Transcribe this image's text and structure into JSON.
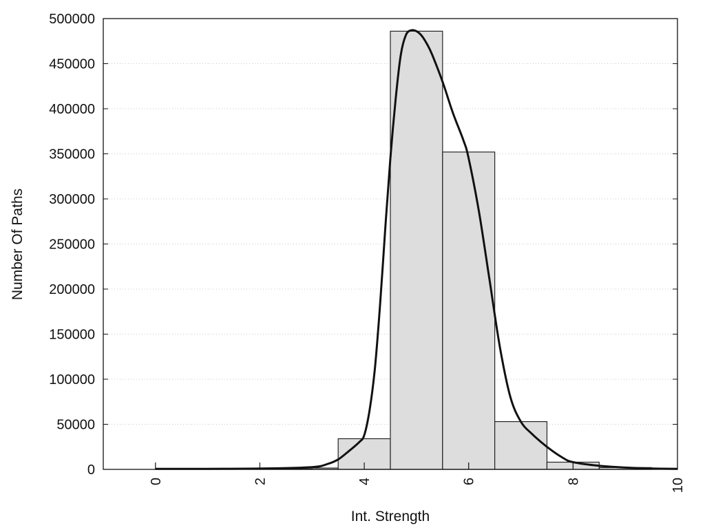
{
  "chart_data": {
    "type": "bar",
    "xlabel": "Int. Strength",
    "ylabel": "Number Of Paths",
    "xlim": [
      -1,
      10
    ],
    "ylim": [
      0,
      500000
    ],
    "x_ticks": [
      0,
      2,
      4,
      6,
      8,
      10
    ],
    "y_ticks": [
      0,
      50000,
      100000,
      150000,
      200000,
      250000,
      300000,
      350000,
      400000,
      450000,
      500000
    ],
    "x_tick_labels": [
      "0",
      "2",
      "4",
      "6",
      "8",
      "10"
    ],
    "y_tick_labels": [
      "0",
      "50000",
      "100000",
      "150000",
      "200000",
      "250000",
      "300000",
      "350000",
      "400000",
      "450000",
      "500000"
    ],
    "grid": {
      "horizontal": true,
      "style": "dotted"
    },
    "legend": null,
    "colors": {
      "bar_fill": "#dddddd",
      "bar_edge": "#222222",
      "curve": "#111111"
    },
    "bins": [
      {
        "from": 0,
        "to": 1,
        "value": 300
      },
      {
        "from": 1,
        "to": 2,
        "value": 400
      },
      {
        "from": 2,
        "to": 3,
        "value": 600
      },
      {
        "from": 3,
        "to": 3.5,
        "value": 1500
      },
      {
        "from": 3.5,
        "to": 4.5,
        "value": 34000
      },
      {
        "from": 4.5,
        "to": 5.5,
        "value": 486000
      },
      {
        "from": 5.5,
        "to": 6.5,
        "value": 352000
      },
      {
        "from": 6.5,
        "to": 7.5,
        "value": 53000
      },
      {
        "from": 7.5,
        "to": 8.5,
        "value": 8000
      },
      {
        "from": 8.5,
        "to": 9.5,
        "value": 2000
      }
    ],
    "curve": {
      "x": [
        0,
        1,
        2,
        3,
        3.3,
        3.5,
        3.7,
        3.9,
        4.0,
        4.1,
        4.2,
        4.3,
        4.4,
        4.5,
        4.6,
        4.7,
        4.8,
        4.9,
        5.0,
        5.1,
        5.2,
        5.3,
        5.5,
        5.7,
        5.9,
        6.0,
        6.2,
        6.4,
        6.6,
        6.8,
        7.0,
        7.2,
        7.5,
        7.8,
        8.0,
        8.5,
        9.0,
        9.5,
        10
      ],
      "y": [
        500,
        600,
        900,
        2500,
        6000,
        11000,
        20000,
        30000,
        38000,
        65000,
        110000,
        180000,
        265000,
        345000,
        410000,
        460000,
        482000,
        487000,
        486000,
        481000,
        472000,
        460000,
        430000,
        395000,
        365000,
        345000,
        285000,
        210000,
        135000,
        80000,
        53000,
        40000,
        25000,
        13000,
        8000,
        4000,
        2000,
        1000,
        500
      ]
    }
  }
}
